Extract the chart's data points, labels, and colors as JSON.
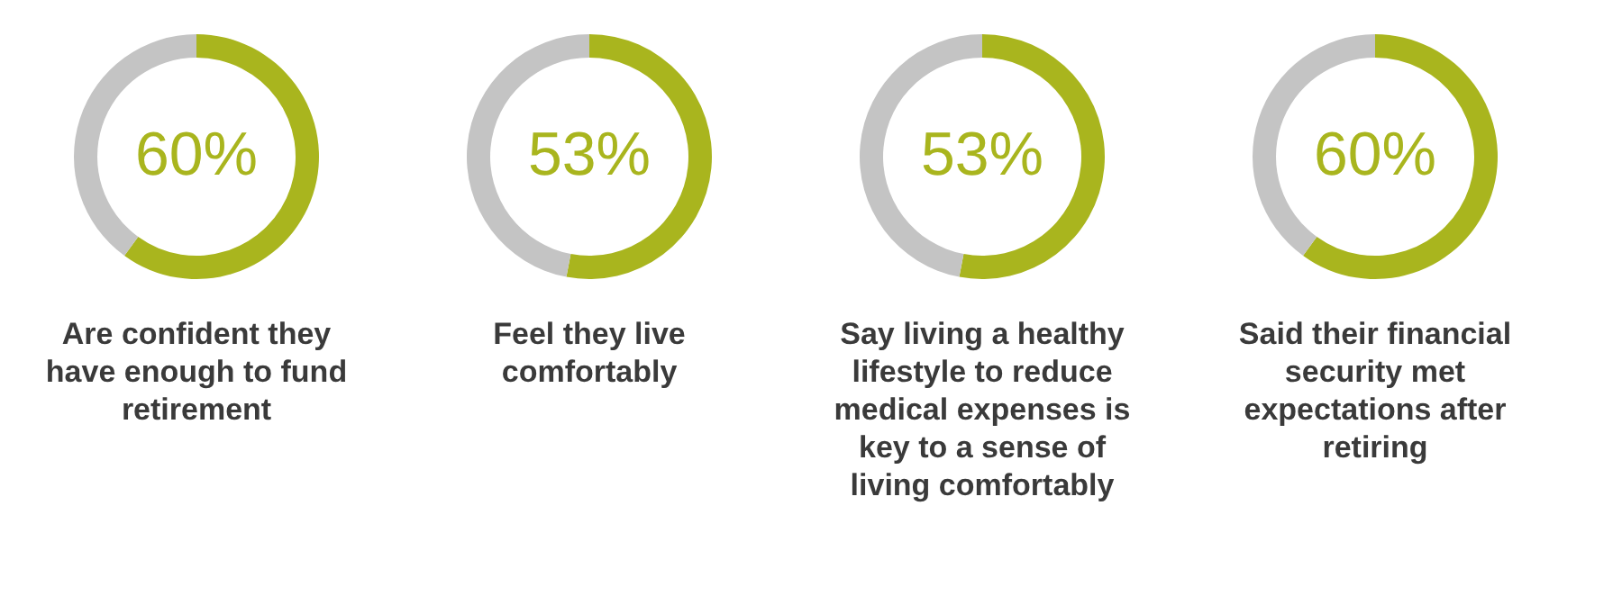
{
  "chart_data": [
    {
      "type": "donut",
      "title": "Are confident they have enough to fund retirement",
      "categories": [
        null,
        null
      ],
      "values": [
        60,
        40
      ],
      "colors": [
        "#a9b51e",
        "#c4c4c4"
      ],
      "value_labels": [
        "60%",
        null
      ]
    },
    {
      "type": "donut",
      "title": "Feel they live comfortably",
      "categories": [
        null,
        null
      ],
      "values": [
        53,
        47
      ],
      "colors": [
        "#a9b51e",
        "#c4c4c4"
      ],
      "value_labels": [
        "53%",
        null
      ]
    },
    {
      "type": "donut",
      "title": "Say living a healthy lifestyle to reduce medical expenses is key to a sense of living comfortably",
      "categories": [
        null,
        null
      ],
      "values": [
        53,
        47
      ],
      "colors": [
        "#a9b51e",
        "#c4c4c4"
      ],
      "value_labels": [
        "53%",
        null
      ]
    },
    {
      "type": "donut",
      "title": "Said their financial security met expectations after retiring",
      "categories": [
        null,
        null
      ],
      "values": [
        60,
        40
      ],
      "colors": [
        "#a9b51e",
        "#c4c4c4"
      ],
      "value_labels": [
        "60%",
        null
      ]
    }
  ]
}
